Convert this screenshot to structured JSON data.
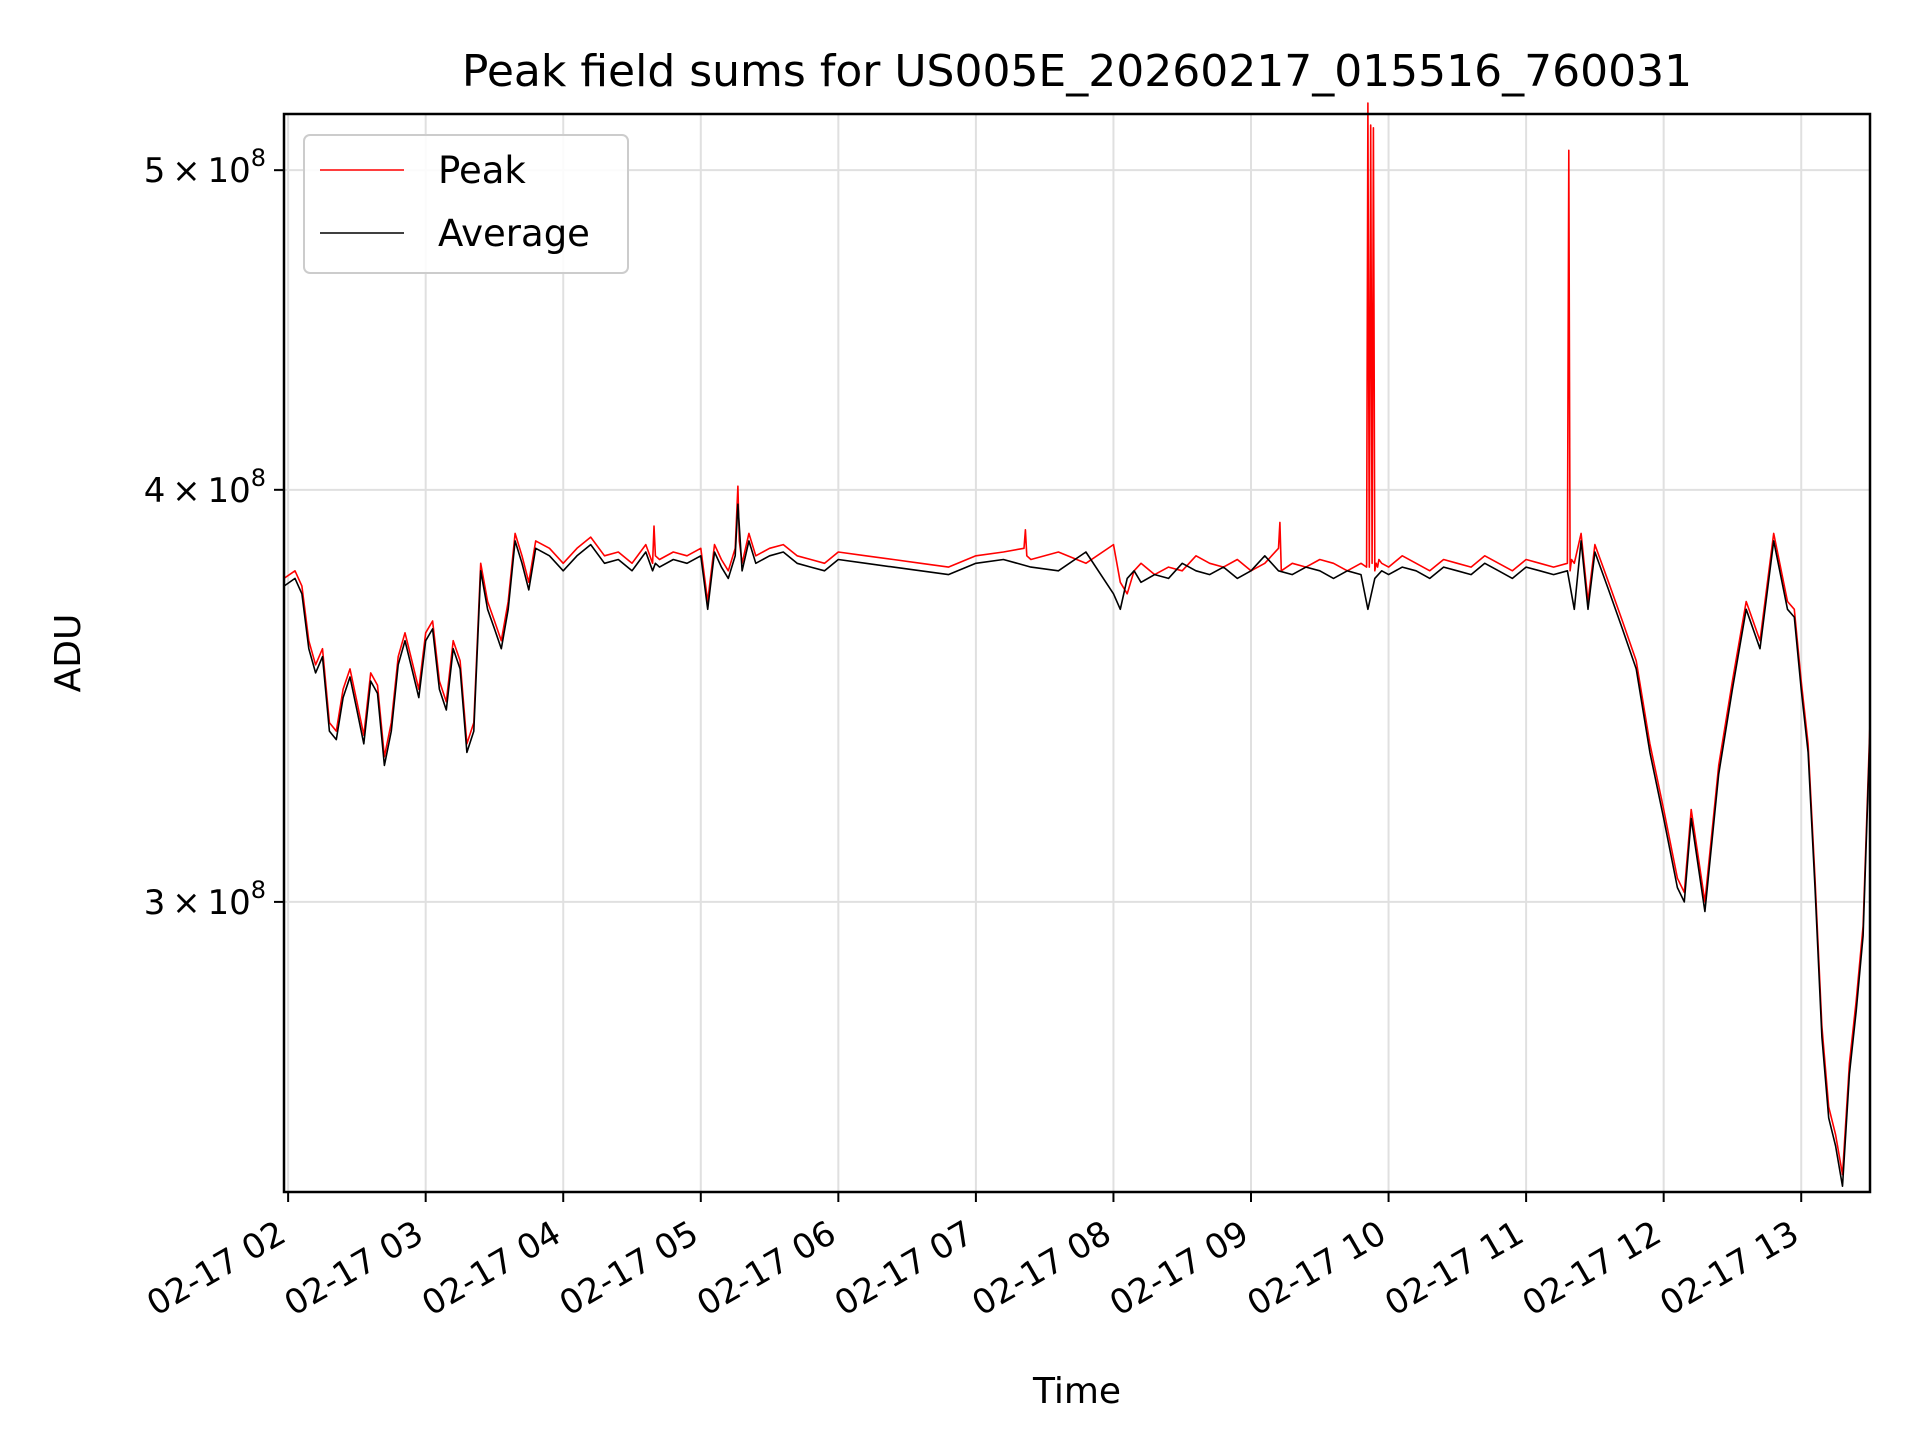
{
  "chart_data": {
    "type": "line",
    "title": "Peak field sums for US005E_20260217_015516_760031",
    "xlabel": "Time",
    "ylabel": "ADU",
    "yscale": "log",
    "ylim": [
      245000000,
      520000000
    ],
    "xlim": [
      1.97,
      13.5
    ],
    "grid": true,
    "legend_position": "top-left",
    "x_ticks": [
      {
        "value": 2,
        "label": "02-17 02"
      },
      {
        "value": 3,
        "label": "02-17 03"
      },
      {
        "value": 4,
        "label": "02-17 04"
      },
      {
        "value": 5,
        "label": "02-17 05"
      },
      {
        "value": 6,
        "label": "02-17 06"
      },
      {
        "value": 7,
        "label": "02-17 07"
      },
      {
        "value": 8,
        "label": "02-17 08"
      },
      {
        "value": 9,
        "label": "02-17 09"
      },
      {
        "value": 10,
        "label": "02-17 10"
      },
      {
        "value": 11,
        "label": "02-17 11"
      },
      {
        "value": 12,
        "label": "02-17 12"
      },
      {
        "value": 13,
        "label": "02-17 13"
      }
    ],
    "y_ticks": [
      {
        "value": 300000000,
        "mantissa": "3",
        "times": "×",
        "base": "10",
        "exp": "8"
      },
      {
        "value": 400000000,
        "mantissa": "4",
        "times": "×",
        "base": "10",
        "exp": "8"
      },
      {
        "value": 500000000,
        "mantissa": "5",
        "times": "×",
        "base": "10",
        "exp": "8"
      }
    ],
    "series": [
      {
        "name": "Peak",
        "color": "#ff0000",
        "x": [
          1.97,
          2.05,
          2.1,
          2.15,
          2.2,
          2.25,
          2.3,
          2.35,
          2.4,
          2.45,
          2.5,
          2.55,
          2.6,
          2.65,
          2.7,
          2.75,
          2.8,
          2.85,
          2.9,
          2.95,
          3.0,
          3.05,
          3.1,
          3.15,
          3.2,
          3.25,
          3.3,
          3.35,
          3.4,
          3.45,
          3.5,
          3.55,
          3.6,
          3.65,
          3.7,
          3.75,
          3.8,
          3.9,
          4.0,
          4.1,
          4.2,
          4.3,
          4.4,
          4.5,
          4.6,
          4.65,
          4.66,
          4.67,
          4.7,
          4.8,
          4.9,
          5.0,
          5.05,
          5.1,
          5.15,
          5.2,
          5.25,
          5.27,
          5.28,
          5.3,
          5.35,
          5.4,
          5.5,
          5.6,
          5.7,
          5.8,
          5.9,
          6.0,
          6.2,
          6.4,
          6.6,
          6.8,
          7.0,
          7.2,
          7.35,
          7.36,
          7.37,
          7.4,
          7.6,
          7.8,
          8.0,
          8.05,
          8.1,
          8.15,
          8.2,
          8.3,
          8.4,
          8.5,
          8.6,
          8.7,
          8.8,
          8.9,
          9.0,
          9.1,
          9.2,
          9.21,
          9.22,
          9.3,
          9.4,
          9.5,
          9.6,
          9.7,
          9.8,
          9.84,
          9.85,
          9.86,
          9.87,
          9.88,
          9.89,
          9.9,
          9.91,
          9.92,
          9.93,
          9.95,
          10.0,
          10.1,
          10.2,
          10.3,
          10.4,
          10.5,
          10.6,
          10.7,
          10.8,
          10.9,
          11.0,
          11.1,
          11.2,
          11.3,
          11.31,
          11.32,
          11.33,
          11.35,
          11.4,
          11.45,
          11.5,
          11.6,
          11.7,
          11.8,
          11.9,
          12.0,
          12.1,
          12.15,
          12.2,
          12.3,
          12.4,
          12.5,
          12.6,
          12.7,
          12.8,
          12.9,
          12.95,
          13.0,
          13.05,
          13.1,
          13.15,
          13.2,
          13.25,
          13.3,
          13.35,
          13.4,
          13.45,
          13.5
        ],
        "values": [
          376000000,
          378000000,
          374000000,
          360000000,
          354000000,
          358000000,
          340000000,
          338000000,
          348000000,
          353000000,
          345000000,
          337000000,
          352000000,
          349000000,
          332000000,
          340000000,
          356000000,
          362000000,
          355000000,
          348000000,
          362000000,
          365000000,
          350000000,
          345000000,
          360000000,
          355000000,
          335000000,
          340000000,
          380000000,
          370000000,
          365000000,
          360000000,
          370000000,
          388000000,
          382000000,
          375000000,
          386000000,
          384000000,
          380000000,
          384000000,
          387000000,
          382000000,
          383000000,
          380000000,
          385000000,
          380000000,
          390000000,
          382000000,
          381000000,
          383000000,
          382000000,
          384000000,
          370000000,
          385000000,
          381000000,
          378000000,
          384000000,
          401000000,
          386000000,
          380000000,
          388000000,
          382000000,
          384000000,
          385000000,
          382000000,
          381000000,
          380000000,
          383000000,
          382000000,
          381000000,
          380000000,
          379000000,
          382000000,
          383000000,
          384000000,
          389000000,
          382000000,
          381000000,
          383000000,
          380000000,
          385000000,
          375000000,
          372000000,
          378000000,
          380000000,
          377000000,
          379000000,
          378000000,
          382000000,
          380000000,
          379000000,
          381000000,
          378000000,
          380000000,
          384000000,
          391000000,
          378000000,
          380000000,
          379000000,
          381000000,
          380000000,
          378000000,
          380000000,
          379000000,
          524000000,
          379000000,
          516000000,
          380000000,
          515000000,
          378000000,
          380000000,
          379000000,
          381000000,
          380000000,
          379000000,
          382000000,
          380000000,
          378000000,
          381000000,
          380000000,
          379000000,
          382000000,
          380000000,
          378000000,
          381000000,
          380000000,
          379000000,
          380000000,
          507000000,
          378000000,
          381000000,
          380000000,
          388000000,
          370000000,
          385000000,
          375000000,
          365000000,
          355000000,
          335000000,
          320000000,
          305000000,
          302000000,
          320000000,
          300000000,
          330000000,
          350000000,
          370000000,
          360000000,
          388000000,
          370000000,
          368000000,
          350000000,
          335000000,
          305000000,
          275000000,
          260000000,
          255000000,
          248000000,
          268000000,
          280000000,
          295000000,
          340000000
        ]
      },
      {
        "name": "Average",
        "color": "#000000",
        "x": [
          1.97,
          2.05,
          2.1,
          2.15,
          2.2,
          2.25,
          2.3,
          2.35,
          2.4,
          2.45,
          2.5,
          2.55,
          2.6,
          2.65,
          2.7,
          2.75,
          2.8,
          2.85,
          2.9,
          2.95,
          3.0,
          3.05,
          3.1,
          3.15,
          3.2,
          3.25,
          3.3,
          3.35,
          3.4,
          3.45,
          3.5,
          3.55,
          3.6,
          3.65,
          3.7,
          3.75,
          3.8,
          3.9,
          4.0,
          4.1,
          4.2,
          4.3,
          4.4,
          4.5,
          4.6,
          4.65,
          4.67,
          4.7,
          4.8,
          4.9,
          5.0,
          5.05,
          5.1,
          5.15,
          5.2,
          5.25,
          5.27,
          5.3,
          5.35,
          5.4,
          5.5,
          5.6,
          5.7,
          5.8,
          5.9,
          6.0,
          6.2,
          6.4,
          6.6,
          6.8,
          7.0,
          7.2,
          7.4,
          7.6,
          7.8,
          8.0,
          8.05,
          8.1,
          8.15,
          8.2,
          8.3,
          8.4,
          8.5,
          8.6,
          8.7,
          8.8,
          8.9,
          9.0,
          9.1,
          9.2,
          9.3,
          9.4,
          9.5,
          9.6,
          9.7,
          9.8,
          9.85,
          9.9,
          9.95,
          10.0,
          10.1,
          10.2,
          10.3,
          10.4,
          10.5,
          10.6,
          10.7,
          10.8,
          10.9,
          11.0,
          11.1,
          11.2,
          11.3,
          11.35,
          11.4,
          11.45,
          11.5,
          11.6,
          11.7,
          11.8,
          11.9,
          12.0,
          12.1,
          12.15,
          12.2,
          12.3,
          12.4,
          12.5,
          12.6,
          12.7,
          12.8,
          12.9,
          12.95,
          13.0,
          13.05,
          13.1,
          13.15,
          13.2,
          13.25,
          13.3,
          13.35,
          13.4,
          13.45,
          13.5
        ],
        "values": [
          374000000,
          376000000,
          372000000,
          358000000,
          352000000,
          356000000,
          338000000,
          336000000,
          346000000,
          351000000,
          343000000,
          335000000,
          350000000,
          347000000,
          330000000,
          338000000,
          354000000,
          360000000,
          353000000,
          346000000,
          360000000,
          363000000,
          348000000,
          343000000,
          358000000,
          353000000,
          333000000,
          338000000,
          378000000,
          368000000,
          363000000,
          358000000,
          368000000,
          386000000,
          380000000,
          373000000,
          384000000,
          382000000,
          378000000,
          382000000,
          385000000,
          380000000,
          381000000,
          378000000,
          383000000,
          378000000,
          380000000,
          379000000,
          381000000,
          380000000,
          382000000,
          368000000,
          383000000,
          379000000,
          376000000,
          382000000,
          396000000,
          378000000,
          386000000,
          380000000,
          382000000,
          383000000,
          380000000,
          379000000,
          378000000,
          381000000,
          380000000,
          379000000,
          378000000,
          377000000,
          380000000,
          381000000,
          379000000,
          378000000,
          383000000,
          372000000,
          368000000,
          376000000,
          378000000,
          375000000,
          377000000,
          376000000,
          380000000,
          378000000,
          377000000,
          379000000,
          376000000,
          378000000,
          382000000,
          378000000,
          377000000,
          379000000,
          378000000,
          376000000,
          378000000,
          377000000,
          368000000,
          376000000,
          378000000,
          377000000,
          379000000,
          378000000,
          376000000,
          379000000,
          378000000,
          377000000,
          380000000,
          378000000,
          376000000,
          379000000,
          378000000,
          377000000,
          378000000,
          368000000,
          386000000,
          368000000,
          383000000,
          373000000,
          363000000,
          353000000,
          333000000,
          318000000,
          303000000,
          300000000,
          318000000,
          298000000,
          328000000,
          348000000,
          368000000,
          358000000,
          386000000,
          368000000,
          366000000,
          348000000,
          333000000,
          303000000,
          273000000,
          258000000,
          253000000,
          246000000,
          266000000,
          278000000,
          293000000,
          338000000
        ]
      }
    ]
  }
}
